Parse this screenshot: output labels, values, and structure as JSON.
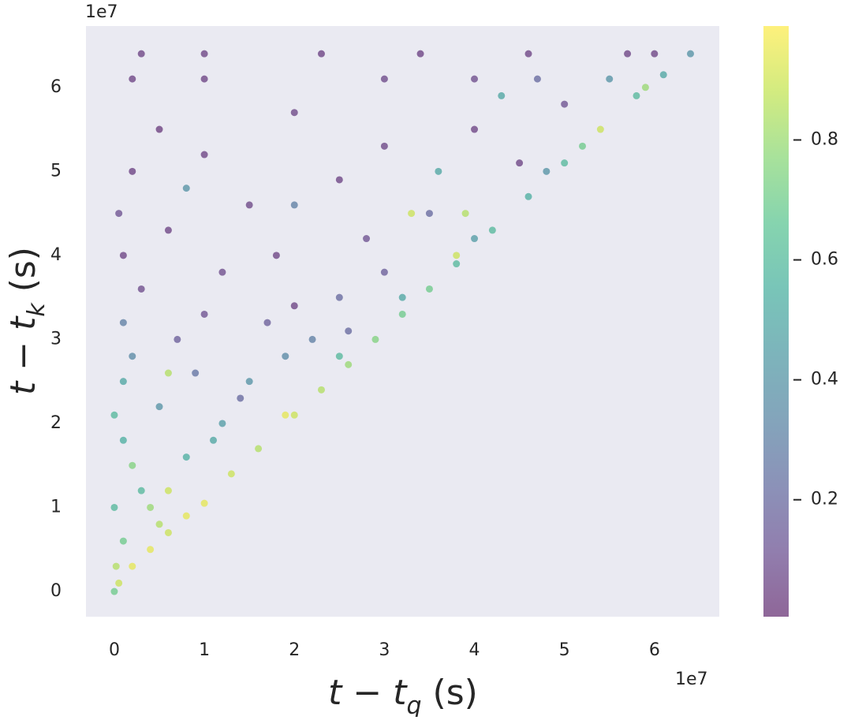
{
  "chart_data": {
    "type": "scatter",
    "xlabel": [
      "t − t",
      "q",
      " (s)"
    ],
    "ylabel": [
      "t − t",
      "k",
      " (s)"
    ],
    "x_offset": "1e7",
    "y_offset": "1e7",
    "xlim": [
      -0.315,
      6.72
    ],
    "ylim": [
      -0.3,
      6.73
    ],
    "xticks": [
      0,
      1,
      2,
      3,
      4,
      5,
      6
    ],
    "yticks": [
      0,
      1,
      2,
      3,
      4,
      5,
      6
    ],
    "colormap": "viridis",
    "clim": [
      0.005,
      0.99
    ],
    "cticks": [
      0.2,
      0.4,
      0.6,
      0.8
    ],
    "alpha": 0.6,
    "x": [
      0.05,
      0.2,
      0.4,
      0.6,
      0.8,
      1.0,
      1.3,
      1.6,
      2.0,
      2.3,
      2.6,
      2.9,
      3.2,
      3.5,
      3.8,
      4.2,
      4.6,
      5.0,
      5.4,
      5.8,
      6.1,
      6.4,
      0.1,
      0.3,
      0.1,
      0.5,
      0.2,
      0.8,
      1.2,
      0.4,
      0.9,
      1.5,
      1.9,
      2.2,
      0.6,
      1.0,
      0.3,
      0.1,
      0.6,
      1.2,
      1.7,
      2.5,
      3.0,
      2.8,
      3.5,
      3.3,
      3.9,
      1.5,
      0.2,
      0.5,
      0.2,
      0.3,
      1.0,
      2.3,
      3.4,
      4.6,
      5.7,
      6.0,
      1.0,
      2.0,
      3.0,
      4.0,
      4.7,
      5.5,
      5.9,
      4.0,
      3.0,
      2.5,
      4.5,
      5.0,
      4.3,
      3.6,
      2.0,
      1.0,
      0.8,
      1.8,
      0.02,
      0.5,
      0.2,
      0.6,
      1.1,
      0.0,
      2.5,
      3.2,
      4.0,
      4.8,
      1.9,
      1.4,
      0.7,
      2.6,
      2.0,
      3.8,
      5.2,
      0.0,
      0.05,
      0.1,
      0.0,
      0.1
    ],
    "y": [
      0.1,
      0.3,
      0.5,
      0.7,
      0.9,
      1.05,
      1.4,
      1.7,
      2.1,
      2.4,
      2.7,
      3.0,
      3.3,
      3.6,
      3.9,
      4.3,
      4.7,
      5.1,
      5.5,
      5.9,
      6.15,
      6.4,
      0.6,
      1.2,
      1.8,
      2.2,
      2.8,
      1.6,
      2.0,
      1.0,
      2.6,
      2.5,
      2.8,
      3.0,
      2.6,
      3.3,
      3.6,
      4.0,
      4.3,
      3.8,
      3.2,
      3.5,
      3.8,
      4.2,
      4.5,
      4.5,
      4.5,
      4.6,
      5.0,
      5.5,
      6.1,
      6.4,
      6.4,
      6.4,
      6.4,
      6.4,
      6.4,
      6.4,
      6.1,
      5.7,
      6.1,
      6.1,
      6.1,
      6.1,
      6.0,
      5.5,
      5.3,
      4.9,
      5.1,
      5.8,
      5.9,
      5.0,
      4.6,
      5.2,
      4.8,
      4.0,
      0.3,
      0.8,
      1.5,
      1.2,
      1.8,
      2.1,
      2.8,
      3.5,
      4.2,
      5.0,
      2.1,
      2.3,
      3.0,
      3.1,
      3.4,
      4.0,
      5.3,
      0.0,
      4.5,
      3.2,
      1.0,
      2.5
    ],
    "c": [
      0.9,
      0.95,
      0.95,
      0.9,
      0.95,
      0.95,
      0.9,
      0.85,
      0.9,
      0.85,
      0.8,
      0.75,
      0.7,
      0.7,
      0.6,
      0.6,
      0.55,
      0.6,
      0.9,
      0.6,
      0.5,
      0.4,
      0.7,
      0.6,
      0.55,
      0.4,
      0.35,
      0.55,
      0.45,
      0.8,
      0.25,
      0.4,
      0.35,
      0.3,
      0.85,
      0.1,
      0.08,
      0.05,
      0.05,
      0.08,
      0.15,
      0.2,
      0.15,
      0.1,
      0.2,
      0.9,
      0.85,
      0.06,
      0.04,
      0.03,
      0.05,
      0.05,
      0.05,
      0.04,
      0.04,
      0.05,
      0.05,
      0.05,
      0.05,
      0.06,
      0.07,
      0.08,
      0.2,
      0.4,
      0.8,
      0.05,
      0.06,
      0.05,
      0.05,
      0.1,
      0.5,
      0.5,
      0.3,
      0.05,
      0.4,
      0.05,
      0.85,
      0.85,
      0.75,
      0.9,
      0.5,
      0.6,
      0.6,
      0.5,
      0.45,
      0.4,
      0.95,
      0.2,
      0.15,
      0.2,
      0.05,
      0.9,
      0.7,
      0.7,
      0.1,
      0.3,
      0.6,
      0.5
    ]
  }
}
